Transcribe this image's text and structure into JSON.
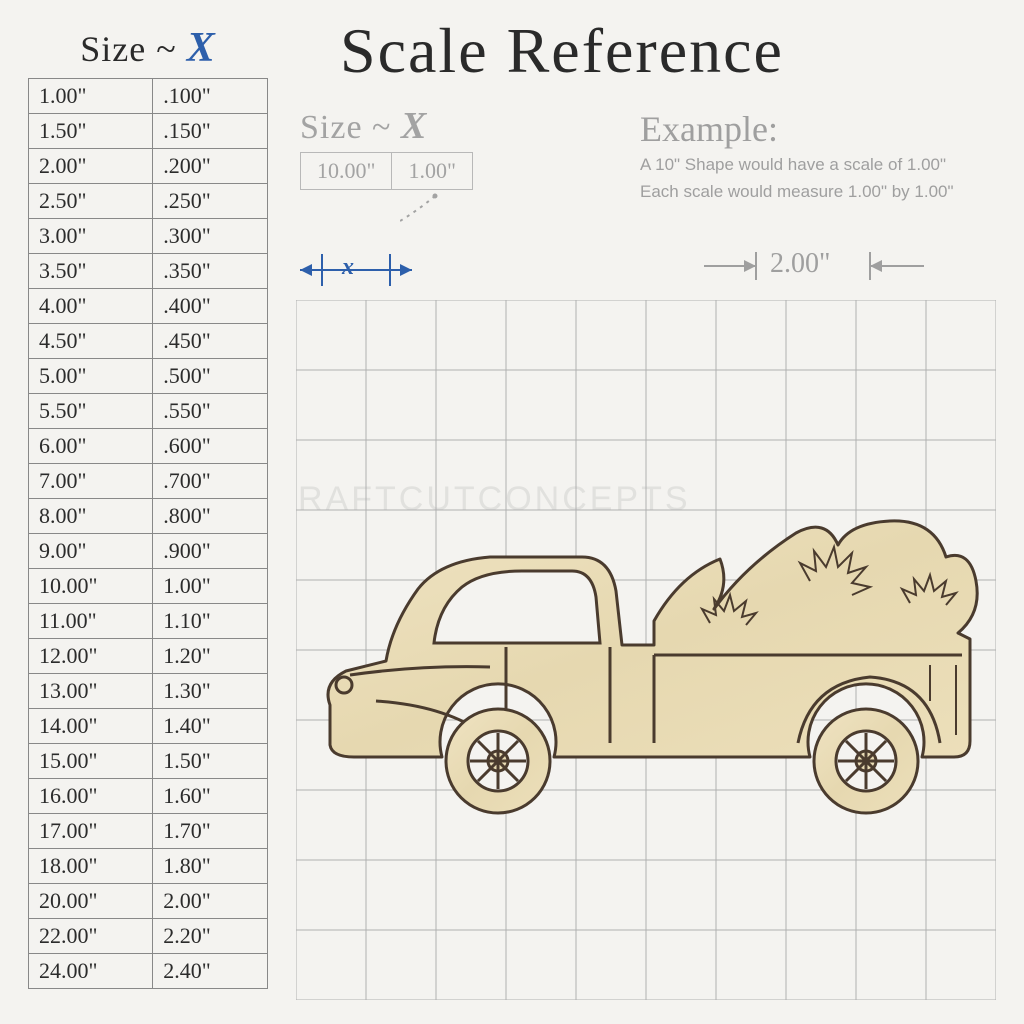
{
  "title": "Scale Reference",
  "size_label": "Size ~",
  "size_x": "X",
  "table": {
    "rows": [
      [
        "1.00\"",
        ".100\""
      ],
      [
        "1.50\"",
        ".150\""
      ],
      [
        "2.00\"",
        ".200\""
      ],
      [
        "2.50\"",
        ".250\""
      ],
      [
        "3.00\"",
        ".300\""
      ],
      [
        "3.50\"",
        ".350\""
      ],
      [
        "4.00\"",
        ".400\""
      ],
      [
        "4.50\"",
        ".450\""
      ],
      [
        "5.00\"",
        ".500\""
      ],
      [
        "5.50\"",
        ".550\""
      ],
      [
        "6.00\"",
        ".600\""
      ],
      [
        "7.00\"",
        ".700\""
      ],
      [
        "8.00\"",
        ".800\""
      ],
      [
        "9.00\"",
        ".900\""
      ],
      [
        "10.00\"",
        "1.00\""
      ],
      [
        "11.00\"",
        "1.10\""
      ],
      [
        "12.00\"",
        "1.20\""
      ],
      [
        "13.00\"",
        "1.30\""
      ],
      [
        "14.00\"",
        "1.40\""
      ],
      [
        "15.00\"",
        "1.50\""
      ],
      [
        "16.00\"",
        "1.60\""
      ],
      [
        "17.00\"",
        "1.70\""
      ],
      [
        "18.00\"",
        "1.80\""
      ],
      [
        "20.00\"",
        "2.00\""
      ],
      [
        "22.00\"",
        "2.20\""
      ],
      [
        "24.00\"",
        "2.40\""
      ]
    ],
    "border_color": "#888888",
    "text_color": "#2b2b2b",
    "font_size": 22
  },
  "mini_legend": {
    "label": "Size ~",
    "x": "X",
    "cells": [
      "10.00\"",
      "1.00\""
    ],
    "color": "#a3a3a3"
  },
  "x_marker": {
    "label": "x",
    "color": "#2d5fab"
  },
  "two_marker": {
    "label": "2.00\"",
    "color": "#9f9f9f"
  },
  "example": {
    "heading": "Example:",
    "line1": "A 10\" Shape would have a scale of 1.00\"",
    "line2": "Each scale would measure 1.00\" by 1.00\"",
    "color": "#9f9f9f"
  },
  "grid": {
    "cell": 70,
    "cols": 10,
    "rows": 10,
    "stroke": "#b0b0b0",
    "stroke_width": 1
  },
  "truck": {
    "fill": "#e9dcb9",
    "stroke": "#4a3b2e"
  },
  "watermark": "RAFTCUTCONCEPTS",
  "colors": {
    "background": "#f4f3f0",
    "title": "#2a2a2a",
    "accent_blue": "#2d5fab",
    "muted": "#9f9f9f"
  }
}
